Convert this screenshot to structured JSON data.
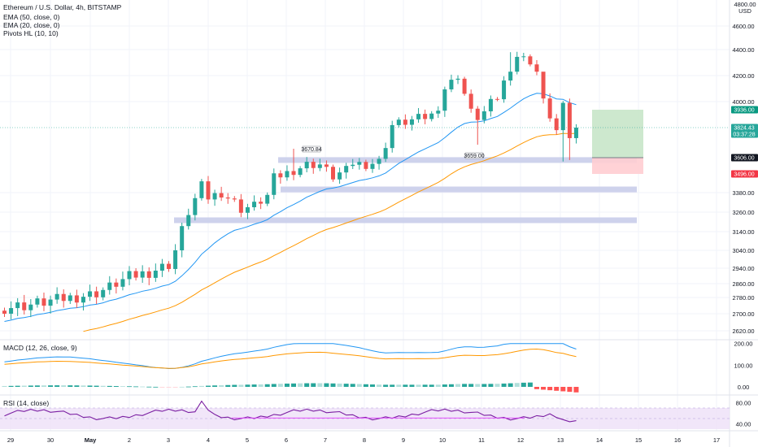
{
  "header": {
    "symbol_line": "Ethereum / U.S. Dollar, 4h, BITSTAMP",
    "indicators": [
      "EMA (50, close, 0)",
      "EMA (20, close, 0)",
      "Pivots HL (10, 10)"
    ]
  },
  "price_axis": {
    "currency": "USD",
    "top_partial_label": "4800.00",
    "ticks": [
      "4600.00",
      "4400.00",
      "4200.00",
      "4000.00",
      "3380.00",
      "3260.00",
      "3140.00",
      "3040.00",
      "2940.00",
      "2860.00",
      "2780.00",
      "2700.00",
      "2620.00"
    ]
  },
  "price_badges": {
    "take_profit": {
      "value": "3936.00",
      "color": "#089981"
    },
    "current": {
      "value": "3824.43",
      "countdown": "03:37:28",
      "color": "#26a69a"
    },
    "entry": {
      "value": "3606.00",
      "color": "#131722"
    },
    "stop_loss": {
      "value": "3496.00",
      "color": "#f23645"
    }
  },
  "pivot_labels": [
    "3670.84",
    "3659.00"
  ],
  "macd": {
    "label": "MACD (12, 26, close, 9)",
    "ticks": [
      "200.00",
      "100.00",
      "0.00"
    ]
  },
  "rsi": {
    "label": "RSI (14, close)",
    "ticks": [
      "80.00",
      "40.00"
    ]
  },
  "time_axis": {
    "labels": [
      "29",
      "30",
      "May",
      "2",
      "3",
      "4",
      "5",
      "6",
      "7",
      "8",
      "9",
      "10",
      "11",
      "12",
      "13",
      "14",
      "15",
      "16",
      "17"
    ]
  },
  "colors": {
    "up": "#26a69a",
    "down": "#ef5350",
    "ema20": "#2196f3",
    "ema50": "#ff9800",
    "zone": "#c5cae9",
    "macd_line": "#2196f3",
    "signal_line": "#ff9800",
    "rsi_line": "#7b1fa2",
    "rsi_band": "#ede0f7"
  },
  "chart_data": {
    "type": "candlestick",
    "symbol": "Ethereum / U.S. Dollar",
    "interval": "4h",
    "exchange": "BITSTAMP",
    "x_dates": [
      "29",
      "30",
      "May",
      "2",
      "3",
      "4",
      "5",
      "6",
      "7",
      "8",
      "9",
      "10",
      "11",
      "12",
      "13"
    ],
    "ohlc_sample": [
      {
        "x": "29",
        "o": 2720,
        "h": 2770,
        "l": 2700,
        "c": 2750
      },
      {
        "x": "30",
        "o": 2760,
        "h": 2800,
        "l": 2730,
        "c": 2780
      },
      {
        "x": "May",
        "o": 2800,
        "h": 2870,
        "l": 2780,
        "c": 2860
      },
      {
        "x": "2",
        "o": 2900,
        "h": 2960,
        "l": 2880,
        "c": 2940
      },
      {
        "x": "3",
        "o": 2960,
        "h": 3150,
        "l": 2950,
        "c": 3140
      },
      {
        "x": "4",
        "o": 3340,
        "h": 3500,
        "l": 3260,
        "c": 3330
      },
      {
        "x": "5",
        "o": 3310,
        "h": 3420,
        "l": 3280,
        "c": 3400
      },
      {
        "x": "6",
        "o": 3450,
        "h": 3560,
        "l": 3420,
        "c": 3540
      },
      {
        "x": "7",
        "o": 3500,
        "h": 3540,
        "l": 3440,
        "c": 3480
      },
      {
        "x": "8",
        "o": 3530,
        "h": 3600,
        "l": 3490,
        "c": 3560
      },
      {
        "x": "9",
        "o": 3800,
        "h": 3930,
        "l": 3760,
        "c": 3900
      },
      {
        "x": "10",
        "o": 3960,
        "h": 4160,
        "l": 3930,
        "c": 4140
      },
      {
        "x": "11",
        "o": 4030,
        "h": 4110,
        "l": 3720,
        "c": 3860
      },
      {
        "x": "12",
        "o": 4200,
        "h": 4360,
        "l": 4130,
        "c": 4330
      },
      {
        "x": "13",
        "o": 3860,
        "h": 3980,
        "l": 3620,
        "c": 3824.43
      }
    ],
    "ema_20_series_name": "EMA (20, close, 0)",
    "ema_50_series_name": "EMA (50, close, 0)",
    "pivots": [
      {
        "value": 3670.84
      },
      {
        "value": 3659.0
      }
    ],
    "support_zones": [
      3590,
      3400,
      3210
    ],
    "position": {
      "take_profit": 3936.0,
      "entry": 3606.0,
      "stop_loss": 3496.0
    },
    "current_price": 3824.43,
    "macd_range": [
      -30,
      210
    ],
    "rsi_range": [
      30,
      90
    ],
    "rsi_last": 46
  }
}
